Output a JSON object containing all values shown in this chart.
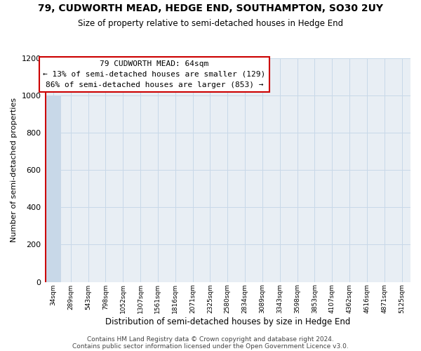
{
  "title_line1": "79, CUDWORTH MEAD, HEDGE END, SOUTHAMPTON, SO30 2UY",
  "title_line2": "Size of property relative to semi-detached houses in Hedge End",
  "xlabel": "Distribution of semi-detached houses by size in Hedge End",
  "ylabel": "Number of semi-detached properties",
  "footer_line1": "Contains HM Land Registry data © Crown copyright and database right 2024.",
  "footer_line2": "Contains public sector information licensed under the Open Government Licence v3.0.",
  "annotation_line1": "79 CUDWORTH MEAD: 64sqm",
  "annotation_line2": "← 13% of semi-detached houses are smaller (129)",
  "annotation_line3": "86% of semi-detached houses are larger (853) →",
  "subject_line_color": "#cc0000",
  "annotation_box_edge_color": "#cc0000",
  "bar_color": "#c8d8e8",
  "grid_color": "#c8d8e8",
  "bg_color": "#e8eef4",
  "bin_labels": [
    "34sqm",
    "289sqm",
    "543sqm",
    "798sqm",
    "1052sqm",
    "1307sqm",
    "1561sqm",
    "1816sqm",
    "2071sqm",
    "2325sqm",
    "2580sqm",
    "2834sqm",
    "3089sqm",
    "3343sqm",
    "3598sqm",
    "3853sqm",
    "4107sqm",
    "4362sqm",
    "4616sqm",
    "4871sqm",
    "5125sqm"
  ],
  "bar_heights": [
    1000,
    0,
    0,
    0,
    0,
    0,
    0,
    0,
    0,
    0,
    0,
    0,
    0,
    0,
    0,
    0,
    0,
    0,
    0,
    0,
    0
  ],
  "ylim": [
    0,
    1200
  ],
  "yticks": [
    0,
    200,
    400,
    600,
    800,
    1000,
    1200
  ]
}
